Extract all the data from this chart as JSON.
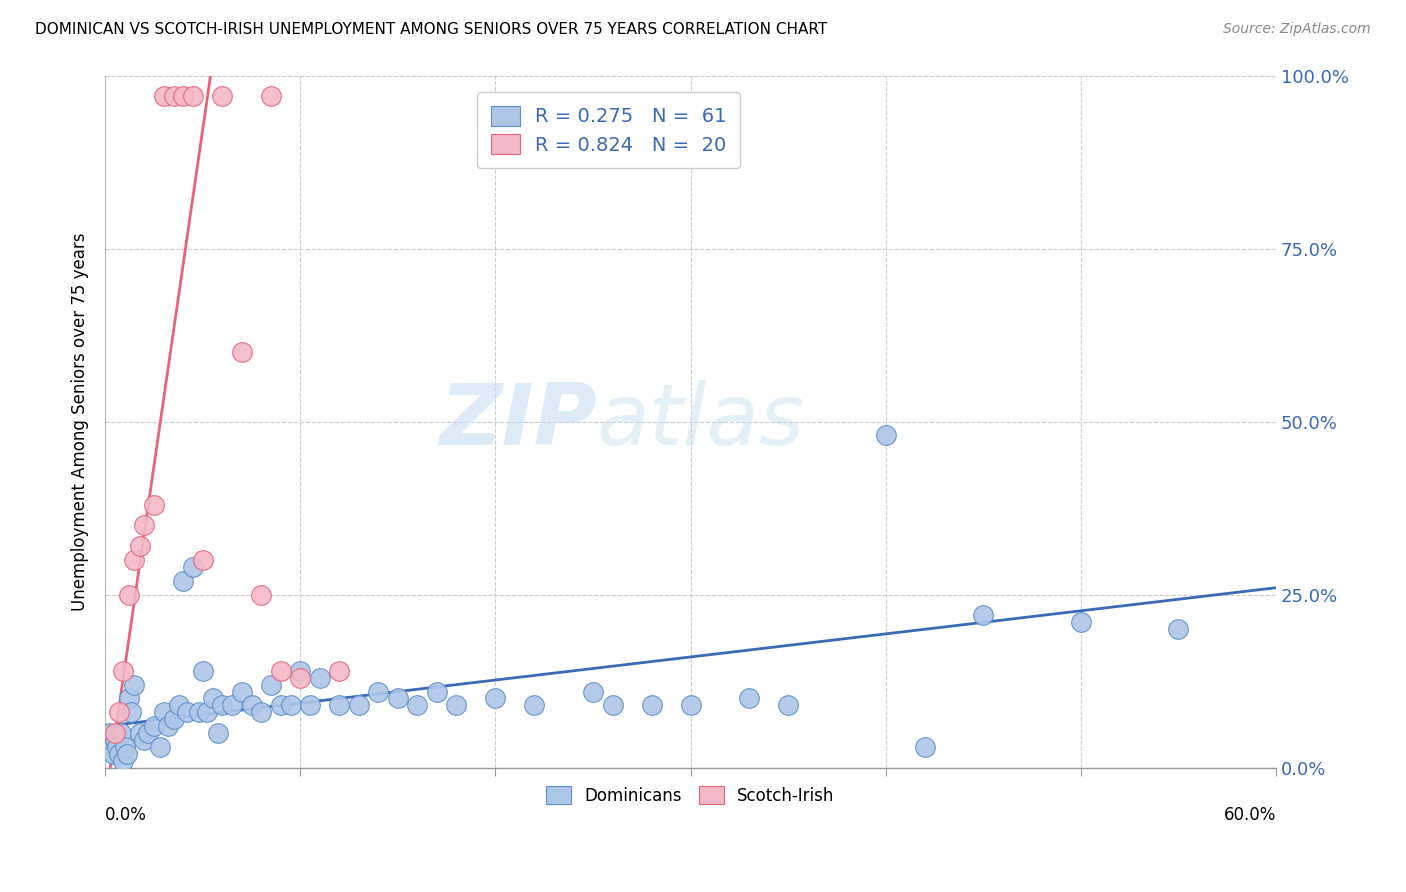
{
  "title": "DOMINICAN VS SCOTCH-IRISH UNEMPLOYMENT AMONG SENIORS OVER 75 YEARS CORRELATION CHART",
  "source": "Source: ZipAtlas.com",
  "ylabel": "Unemployment Among Seniors over 75 years",
  "ytick_vals": [
    0,
    25,
    50,
    75,
    100
  ],
  "xlim": [
    0,
    60
  ],
  "ylim": [
    0,
    100
  ],
  "dominican_color": "#aec6e8",
  "dominican_edge_color": "#5b8fc9",
  "dominican_line_color": "#3a6ab5",
  "scotch_color": "#f4b8c8",
  "scotch_edge_color": "#e8637a",
  "scotch_line_color": "#e8637a",
  "R_dominican": 0.275,
  "N_dominican": 61,
  "R_scotch": 0.824,
  "N_scotch": 20,
  "watermark_zip": "ZIP",
  "watermark_atlas": "atlas",
  "dominican_points": [
    [
      0.2,
      5
    ],
    [
      0.3,
      3
    ],
    [
      0.4,
      2
    ],
    [
      0.5,
      4
    ],
    [
      0.6,
      3
    ],
    [
      0.7,
      2
    ],
    [
      0.8,
      5
    ],
    [
      0.9,
      1
    ],
    [
      1.0,
      3
    ],
    [
      1.1,
      2
    ],
    [
      1.2,
      10
    ],
    [
      1.3,
      8
    ],
    [
      1.5,
      12
    ],
    [
      1.8,
      5
    ],
    [
      2.0,
      4
    ],
    [
      2.2,
      5
    ],
    [
      2.5,
      6
    ],
    [
      2.8,
      3
    ],
    [
      3.0,
      8
    ],
    [
      3.2,
      6
    ],
    [
      3.5,
      7
    ],
    [
      3.8,
      9
    ],
    [
      4.0,
      27
    ],
    [
      4.2,
      8
    ],
    [
      4.5,
      29
    ],
    [
      4.8,
      8
    ],
    [
      5.0,
      14
    ],
    [
      5.2,
      8
    ],
    [
      5.5,
      10
    ],
    [
      5.8,
      5
    ],
    [
      6.0,
      9
    ],
    [
      6.5,
      9
    ],
    [
      7.0,
      11
    ],
    [
      7.5,
      9
    ],
    [
      8.0,
      8
    ],
    [
      8.5,
      12
    ],
    [
      9.0,
      9
    ],
    [
      9.5,
      9
    ],
    [
      10.0,
      14
    ],
    [
      10.5,
      9
    ],
    [
      11.0,
      13
    ],
    [
      12.0,
      9
    ],
    [
      13.0,
      9
    ],
    [
      14.0,
      11
    ],
    [
      15.0,
      10
    ],
    [
      16.0,
      9
    ],
    [
      17.0,
      11
    ],
    [
      18.0,
      9
    ],
    [
      20.0,
      10
    ],
    [
      22.0,
      9
    ],
    [
      25.0,
      11
    ],
    [
      26.0,
      9
    ],
    [
      28.0,
      9
    ],
    [
      30.0,
      9
    ],
    [
      33.0,
      10
    ],
    [
      35.0,
      9
    ],
    [
      40.0,
      48
    ],
    [
      42.0,
      3
    ],
    [
      45.0,
      22
    ],
    [
      50.0,
      21
    ],
    [
      55.0,
      20
    ]
  ],
  "scotch_points": [
    [
      0.5,
      5
    ],
    [
      0.7,
      8
    ],
    [
      0.9,
      14
    ],
    [
      1.2,
      25
    ],
    [
      1.5,
      30
    ],
    [
      1.8,
      32
    ],
    [
      2.0,
      35
    ],
    [
      2.5,
      38
    ],
    [
      3.0,
      97
    ],
    [
      3.5,
      97
    ],
    [
      4.0,
      97
    ],
    [
      4.5,
      97
    ],
    [
      5.0,
      30
    ],
    [
      6.0,
      97
    ],
    [
      7.0,
      60
    ],
    [
      8.0,
      25
    ],
    [
      8.5,
      97
    ],
    [
      9.0,
      14
    ],
    [
      10.0,
      13
    ],
    [
      12.0,
      14
    ]
  ],
  "scotch_line_points": [
    [
      0.0,
      -5
    ],
    [
      5.5,
      102
    ]
  ],
  "dominican_line_points": [
    [
      0.0,
      6
    ],
    [
      60.0,
      26
    ]
  ]
}
